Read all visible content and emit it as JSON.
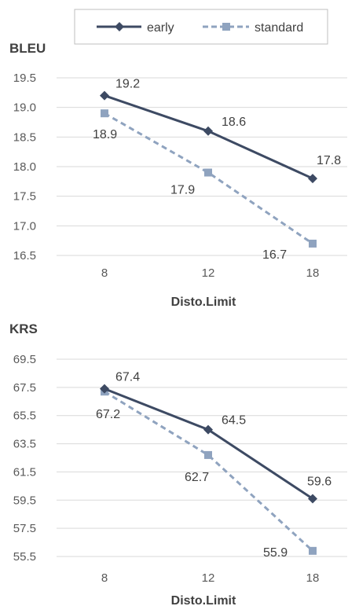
{
  "legend": {
    "entries": [
      {
        "name": "early",
        "color": "#3d4a63",
        "marker": "diamond",
        "dash": "solid"
      },
      {
        "name": "standard",
        "color": "#8fa3bf",
        "marker": "square",
        "dash": "dashed"
      }
    ]
  },
  "chart_data": [
    {
      "type": "line",
      "title": "BLEU",
      "xlabel": "Disto.Limit",
      "ylabel": "",
      "categories": [
        "8",
        "12",
        "18"
      ],
      "ylim": [
        16.5,
        19.5
      ],
      "yticks": [
        "19.5",
        "19.0",
        "18.5",
        "18.0",
        "17.5",
        "17.0",
        "16.5"
      ],
      "grid": true,
      "legend_position": "top-center",
      "series": [
        {
          "name": "early",
          "values": [
            19.2,
            18.6,
            17.8
          ],
          "labels": [
            "19.2",
            "18.6",
            "17.8"
          ]
        },
        {
          "name": "standard",
          "values": [
            18.9,
            17.9,
            16.7
          ],
          "labels": [
            "18.9",
            "17.9",
            "16.7"
          ]
        }
      ]
    },
    {
      "type": "line",
      "title": "KRS",
      "xlabel": "Disto.Limit",
      "ylabel": "",
      "categories": [
        "8",
        "12",
        "18"
      ],
      "ylim": [
        55.5,
        69.5
      ],
      "yticks": [
        "69.5",
        "67.5",
        "65.5",
        "63.5",
        "61.5",
        "59.5",
        "57.5",
        "55.5"
      ],
      "grid": true,
      "series": [
        {
          "name": "early",
          "values": [
            67.4,
            64.5,
            59.6
          ],
          "labels": [
            "67.4",
            "64.5",
            "59.6"
          ]
        },
        {
          "name": "standard",
          "values": [
            67.2,
            62.7,
            55.9
          ],
          "labels": [
            "67.2",
            "62.7",
            "55.9"
          ]
        }
      ]
    }
  ]
}
